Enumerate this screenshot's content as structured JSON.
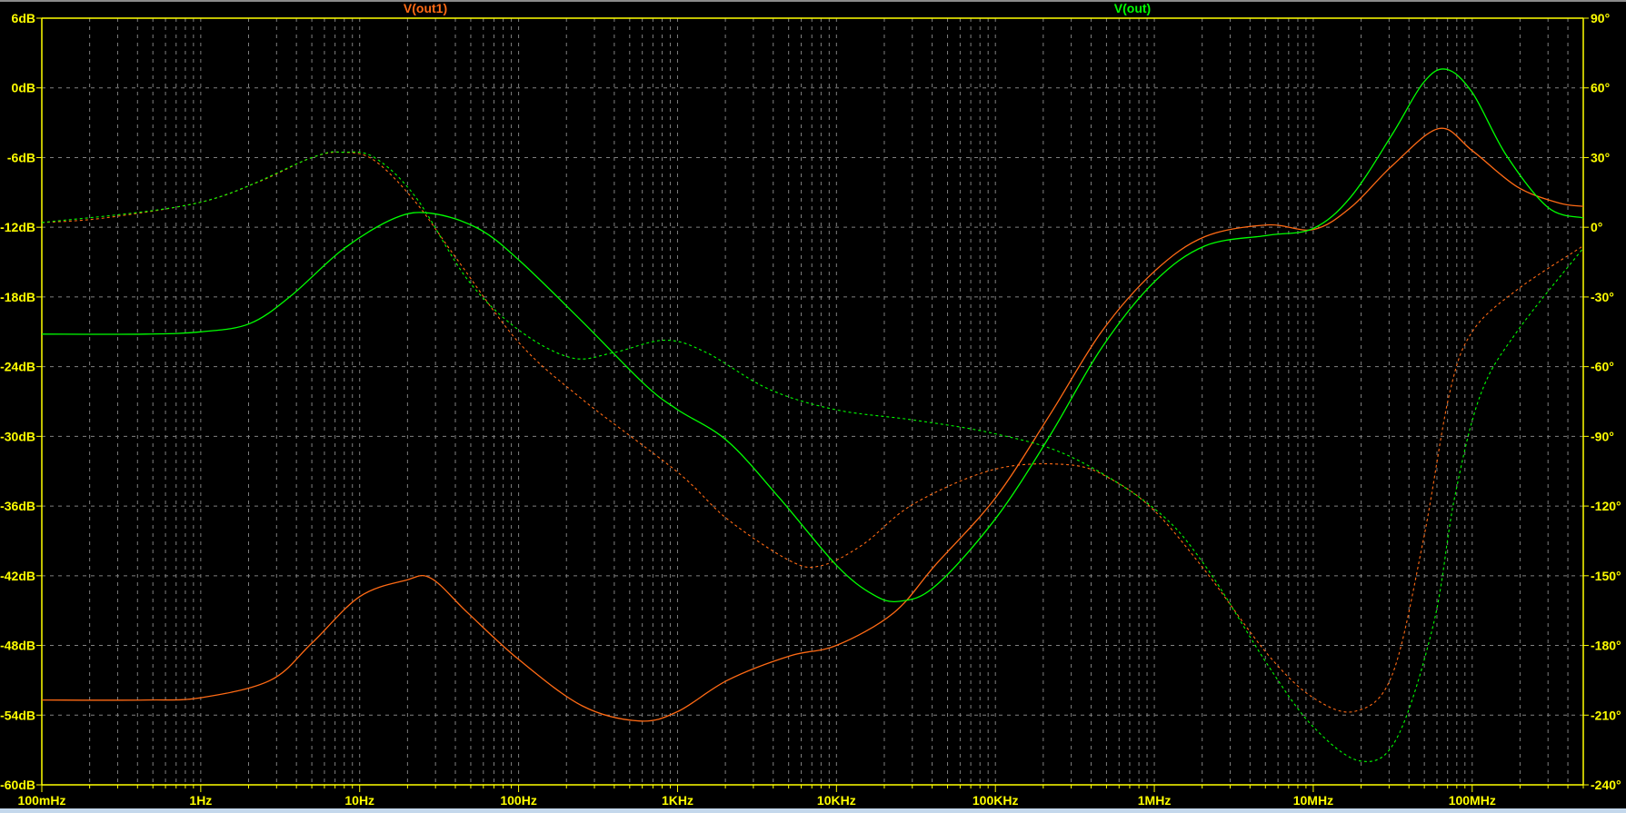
{
  "chart_data": {
    "type": "line",
    "title": "",
    "x_scale": "log",
    "xlim_hz": [
      0.1,
      500000000
    ],
    "x_ticks": [
      {
        "f": 0.1,
        "label": "100mHz"
      },
      {
        "f": 1,
        "label": "1Hz"
      },
      {
        "f": 10,
        "label": "10Hz"
      },
      {
        "f": 100,
        "label": "100Hz"
      },
      {
        "f": 1000,
        "label": "1KHz"
      },
      {
        "f": 10000,
        "label": "10KHz"
      },
      {
        "f": 100000,
        "label": "100KHz"
      },
      {
        "f": 1000000,
        "label": "1MHz"
      },
      {
        "f": 10000000,
        "label": "10MHz"
      },
      {
        "f": 100000000,
        "label": "100MHz"
      }
    ],
    "left_axis": {
      "unit": "dB",
      "ylim": [
        -60,
        6
      ],
      "ticks": [
        {
          "v": 6,
          "label": "6dB"
        },
        {
          "v": 0,
          "label": "0dB"
        },
        {
          "v": -6,
          "label": "-6dB"
        },
        {
          "v": -12,
          "label": "-12dB"
        },
        {
          "v": -18,
          "label": "-18dB"
        },
        {
          "v": -24,
          "label": "-24dB"
        },
        {
          "v": -30,
          "label": "-30dB"
        },
        {
          "v": -36,
          "label": "-36dB"
        },
        {
          "v": -42,
          "label": "-42dB"
        },
        {
          "v": -48,
          "label": "-48dB"
        },
        {
          "v": -54,
          "label": "-54dB"
        },
        {
          "v": -60,
          "label": "-60dB"
        }
      ]
    },
    "right_axis": {
      "unit": "degrees",
      "ylim": [
        -240,
        90
      ],
      "ticks": [
        {
          "v": 90,
          "label": "90°"
        },
        {
          "v": 60,
          "label": "60°"
        },
        {
          "v": 30,
          "label": "30°"
        },
        {
          "v": 0,
          "label": "0°"
        },
        {
          "v": -30,
          "label": "-30°"
        },
        {
          "v": -60,
          "label": "-60°"
        },
        {
          "v": -90,
          "label": "-90°"
        },
        {
          "v": -120,
          "label": "-120°"
        },
        {
          "v": -150,
          "label": "-150°"
        },
        {
          "v": -180,
          "label": "-180°"
        },
        {
          "v": -210,
          "label": "-210°"
        },
        {
          "v": -240,
          "label": "-240°"
        }
      ]
    },
    "grid": true,
    "colors": {
      "background": "#000000",
      "axis": "#ffff00",
      "grid": "#808080"
    },
    "series": [
      {
        "name": "V(out1)",
        "color": "#ff6a14",
        "magnitude_db": [
          [
            0.1,
            -52.7
          ],
          [
            0.45,
            -52.7
          ],
          [
            1,
            -52.5
          ],
          [
            2.74,
            -51
          ],
          [
            5,
            -47.8
          ],
          [
            10,
            -43.8
          ],
          [
            19.4,
            -42.4
          ],
          [
            28,
            -42.2
          ],
          [
            47.9,
            -45.2
          ],
          [
            100,
            -49.2
          ],
          [
            251,
            -53.2
          ],
          [
            573,
            -54.5
          ],
          [
            1000,
            -53.7
          ],
          [
            2060,
            -51
          ],
          [
            5080,
            -48.9
          ],
          [
            10000,
            -48
          ],
          [
            22900,
            -45.2
          ],
          [
            41800,
            -41.1
          ],
          [
            100000,
            -35.3
          ],
          [
            219000,
            -28.2
          ],
          [
            465000,
            -21
          ],
          [
            1000000,
            -15.8
          ],
          [
            2090000,
            -12.8
          ],
          [
            5150000,
            -11.8
          ],
          [
            10000000,
            -12.2
          ],
          [
            17200000,
            -10.3
          ],
          [
            31400000,
            -6.7
          ],
          [
            61800000,
            -3.5
          ],
          [
            100000000,
            -5.4
          ],
          [
            191000000,
            -8.5
          ],
          [
            348000000,
            -9.9
          ],
          [
            500000000,
            -10.2
          ]
        ],
        "phase_deg": [
          [
            0.1,
            2
          ],
          [
            0.247,
            4
          ],
          [
            1,
            10.8
          ],
          [
            2.36,
            19.8
          ],
          [
            5,
            30
          ],
          [
            7.85,
            32.3
          ],
          [
            12.4,
            28.7
          ],
          [
            22.5,
            10.8
          ],
          [
            41,
            -13.8
          ],
          [
            100,
            -49.5
          ],
          [
            251,
            -74
          ],
          [
            1000,
            -105.4
          ],
          [
            2060,
            -125.6
          ],
          [
            5080,
            -143.5
          ],
          [
            7980,
            -145.7
          ],
          [
            14560,
            -136.7
          ],
          [
            30900,
            -118.9
          ],
          [
            100000,
            -104.1
          ],
          [
            296000,
            -102.3
          ],
          [
            540000,
            -108.6
          ],
          [
            1000000,
            -122
          ],
          [
            2090000,
            -147.9
          ],
          [
            5150000,
            -183.7
          ],
          [
            10000000,
            -202.5
          ],
          [
            18500000,
            -208.3
          ],
          [
            31400000,
            -192.6
          ],
          [
            49300000,
            -134.5
          ],
          [
            71800000,
            -71.9
          ],
          [
            100000000,
            -45
          ],
          [
            191000000,
            -27
          ],
          [
            500000000,
            -8
          ]
        ]
      },
      {
        "name": "V(out)",
        "color": "#00ff00",
        "magnitude_db": [
          [
            0.1,
            -21.2
          ],
          [
            0.45,
            -21.2
          ],
          [
            1,
            -21
          ],
          [
            2.03,
            -20.3
          ],
          [
            3.7,
            -17.9
          ],
          [
            7.85,
            -13.9
          ],
          [
            16.7,
            -11.2
          ],
          [
            28.3,
            -10.8
          ],
          [
            55.6,
            -12.1
          ],
          [
            100,
            -14.8
          ],
          [
            251,
            -20.1
          ],
          [
            618,
            -25.5
          ],
          [
            1000,
            -27.7
          ],
          [
            2060,
            -30.4
          ],
          [
            4370,
            -35.3
          ],
          [
            10000,
            -41.1
          ],
          [
            16900,
            -43.6
          ],
          [
            24700,
            -44.2
          ],
          [
            41800,
            -42.9
          ],
          [
            100000,
            -37.1
          ],
          [
            219000,
            -30
          ],
          [
            465000,
            -22.4
          ],
          [
            1000000,
            -16.7
          ],
          [
            2090000,
            -13.6
          ],
          [
            5150000,
            -12.7
          ],
          [
            10000000,
            -12.1
          ],
          [
            17200000,
            -9.4
          ],
          [
            31400000,
            -4
          ],
          [
            49300000,
            0.45
          ],
          [
            68700000,
            1.6
          ],
          [
            100000000,
            -0.4
          ],
          [
            164000000,
            -5.8
          ],
          [
            300000000,
            -10.3
          ],
          [
            500000000,
            -11.2
          ]
        ],
        "phase_deg": [
          [
            0.1,
            2
          ],
          [
            1,
            10.8
          ],
          [
            5,
            30
          ],
          [
            7.85,
            32.3
          ],
          [
            12.4,
            30
          ],
          [
            22.5,
            13
          ],
          [
            47.9,
            -22.7
          ],
          [
            100,
            -44.2
          ],
          [
            215,
            -56.2
          ],
          [
            394,
            -54
          ],
          [
            835,
            -48.6
          ],
          [
            1524,
            -54
          ],
          [
            3760,
            -69.7
          ],
          [
            10000,
            -78.6
          ],
          [
            30900,
            -83
          ],
          [
            100000,
            -88.9
          ],
          [
            296000,
            -98.7
          ],
          [
            1000000,
            -121.1
          ],
          [
            2090000,
            -145.7
          ],
          [
            5150000,
            -188.2
          ],
          [
            10000000,
            -215
          ],
          [
            20000000,
            -229.8
          ],
          [
            33800000,
            -219.5
          ],
          [
            57300000,
            -170.3
          ],
          [
            77400000,
            -116.6
          ],
          [
            113000000,
            -71.9
          ],
          [
            191000000,
            -45
          ],
          [
            500000000,
            -9
          ]
        ]
      }
    ]
  }
}
